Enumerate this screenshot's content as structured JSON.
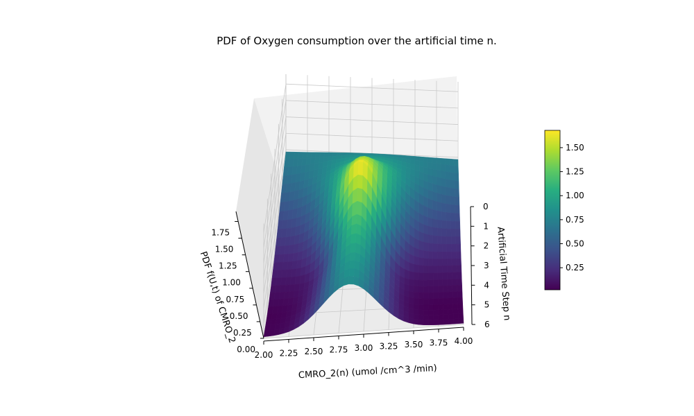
{
  "chart_data": {
    "type": "surface3d",
    "title": "PDF of Oxygen consumption over the artificial time n.",
    "xlabel": "CMRO_2(n) (umol /cm^3 /min)",
    "ylabel": "Artificial Time Step n",
    "zlabel": "PDF f(U,t) of CMRO_2",
    "x_ticks": [
      "2.00",
      "2.25",
      "2.50",
      "2.75",
      "3.00",
      "3.25",
      "3.50",
      "3.75",
      "4.00"
    ],
    "y_ticks": [
      "0",
      "1",
      "2",
      "3",
      "4",
      "5",
      "6"
    ],
    "z_ticks": [
      "0.00",
      "0.25",
      "0.50",
      "0.75",
      "1.00",
      "1.25",
      "1.50",
      "1.75"
    ],
    "xlim": [
      2.0,
      4.0
    ],
    "ylim": [
      0,
      6
    ],
    "zlim": [
      0,
      1.9
    ],
    "colormap": "viridis",
    "colorbar": {
      "range": [
        0.02,
        1.68
      ],
      "ticks": [
        "0.25",
        "0.50",
        "0.75",
        "1.00",
        "1.25",
        "1.50"
      ],
      "tick_values": [
        0.25,
        0.5,
        0.75,
        1.0,
        1.25,
        1.5
      ]
    },
    "surface_rows": [
      {
        "n": 0,
        "center": 3.0,
        "sigma": 0.56,
        "peak": 0.75,
        "floor": 0.71
      },
      {
        "n": 1,
        "center": 2.97,
        "sigma": 0.42,
        "peak": 1.0,
        "floor": 0.55
      },
      {
        "n": 2,
        "center": 2.94,
        "sigma": 0.3,
        "peak": 1.4,
        "floor": 0.38
      },
      {
        "n": 3,
        "center": 2.92,
        "sigma": 0.24,
        "peak": 1.68,
        "floor": 0.22
      },
      {
        "n": 4,
        "center": 2.9,
        "sigma": 0.2,
        "peak": 1.2,
        "floor": 0.1
      },
      {
        "n": 5,
        "center": 2.88,
        "sigma": 0.24,
        "peak": 0.95,
        "floor": 0.02
      },
      {
        "n": 6,
        "center": 2.86,
        "sigma": 0.27,
        "peak": 0.8,
        "floor": 0.02
      }
    ]
  }
}
